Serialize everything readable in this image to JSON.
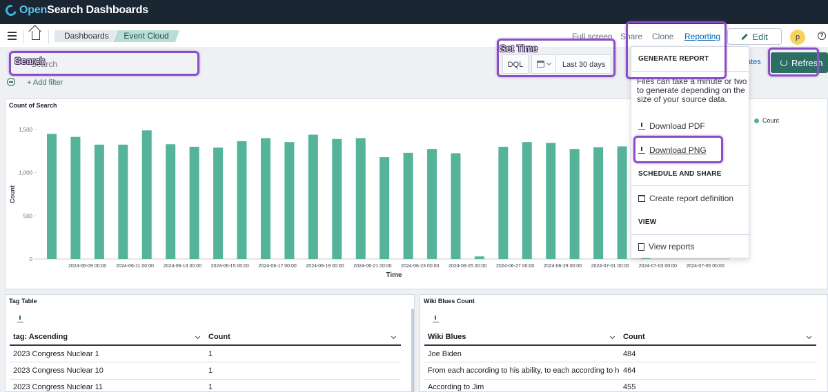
{
  "app": {
    "brand_open": "Open",
    "brand_rest": "Search Dashboards",
    "brand_icon": "opensearch-logo-icon"
  },
  "breadcrumbs": [
    "Dashboards",
    "Event Cloud"
  ],
  "nav": {
    "full_screen": "Full screen",
    "share": "Share",
    "clone": "Clone",
    "reporting": "Reporting",
    "edit": "Edit",
    "avatar": "p"
  },
  "query": {
    "search_placeholder": "Search",
    "language": "DQL",
    "time_range": "Last 30 days",
    "updates_text": "ates",
    "refresh": "Refresh"
  },
  "filter": {
    "add_filter": "+ Add filter"
  },
  "chart_panel_title": "Count of Search",
  "chart_data": {
    "type": "bar",
    "title": "",
    "xlabel": "Time",
    "ylabel": "Count",
    "ylim": [
      0,
      1500
    ],
    "yticks": [
      "0",
      "500",
      "1,000",
      "1,500"
    ],
    "ytick_values": [
      0,
      500,
      1000,
      1500
    ],
    "xtick_labels": [
      "2024-06-09 00:00",
      "2024-06-11 00:00",
      "2024-06-13 00:00",
      "2024-06-15 00:00",
      "2024-06-17 00:00",
      "2024-06-19 00:00",
      "2024-06-21 00:00",
      "2024-06-23 00:00",
      "2024-06-25 00:00",
      "2024-06-27 00:00",
      "2024-06-29 00:00",
      "2024-07-01 00:00",
      "2024-07-03 00:00",
      "2024-07-05 00:00"
    ],
    "series": [
      {
        "name": "Count",
        "color": "#54b399",
        "values": [
          1450,
          1415,
          1325,
          1325,
          1490,
          1330,
          1300,
          1290,
          1365,
          1400,
          1355,
          1440,
          1390,
          1400,
          1180,
          1230,
          1275,
          1225,
          30,
          1300,
          1355,
          1345,
          1275,
          1295,
          1305,
          1270
        ]
      }
    ],
    "legend_position": "right",
    "grid": false
  },
  "tag_table": {
    "title": "Tag Table",
    "columns": [
      "tag: Ascending",
      "Count"
    ],
    "rows": [
      [
        "2023 Congress Nuclear 1",
        "1"
      ],
      [
        "2023 Congress Nuclear 10",
        "1"
      ],
      [
        "2023 Congress Nuclear 11",
        "1"
      ]
    ]
  },
  "wiki_table": {
    "title": "Wiki Blues Count",
    "columns": [
      "Wiki Blues",
      "Count"
    ],
    "rows": [
      [
        "Joe Biden",
        "484"
      ],
      [
        "From each according to his ability, to each according to his needs",
        "464"
      ],
      [
        "According to Jim",
        "455"
      ]
    ]
  },
  "reporting_menu": {
    "generate_title": "GENERATE REPORT",
    "description": "Files can take a minute or two to generate depending on the size of your source data.",
    "download_pdf": "Download PDF",
    "download_png": "Download PNG",
    "schedule_title": "SCHEDULE AND SHARE",
    "create_definition": "Create report definition",
    "view_title": "VIEW",
    "view_reports": "View reports"
  },
  "annotations": {
    "search": "Search",
    "set_time": "Set Time"
  }
}
